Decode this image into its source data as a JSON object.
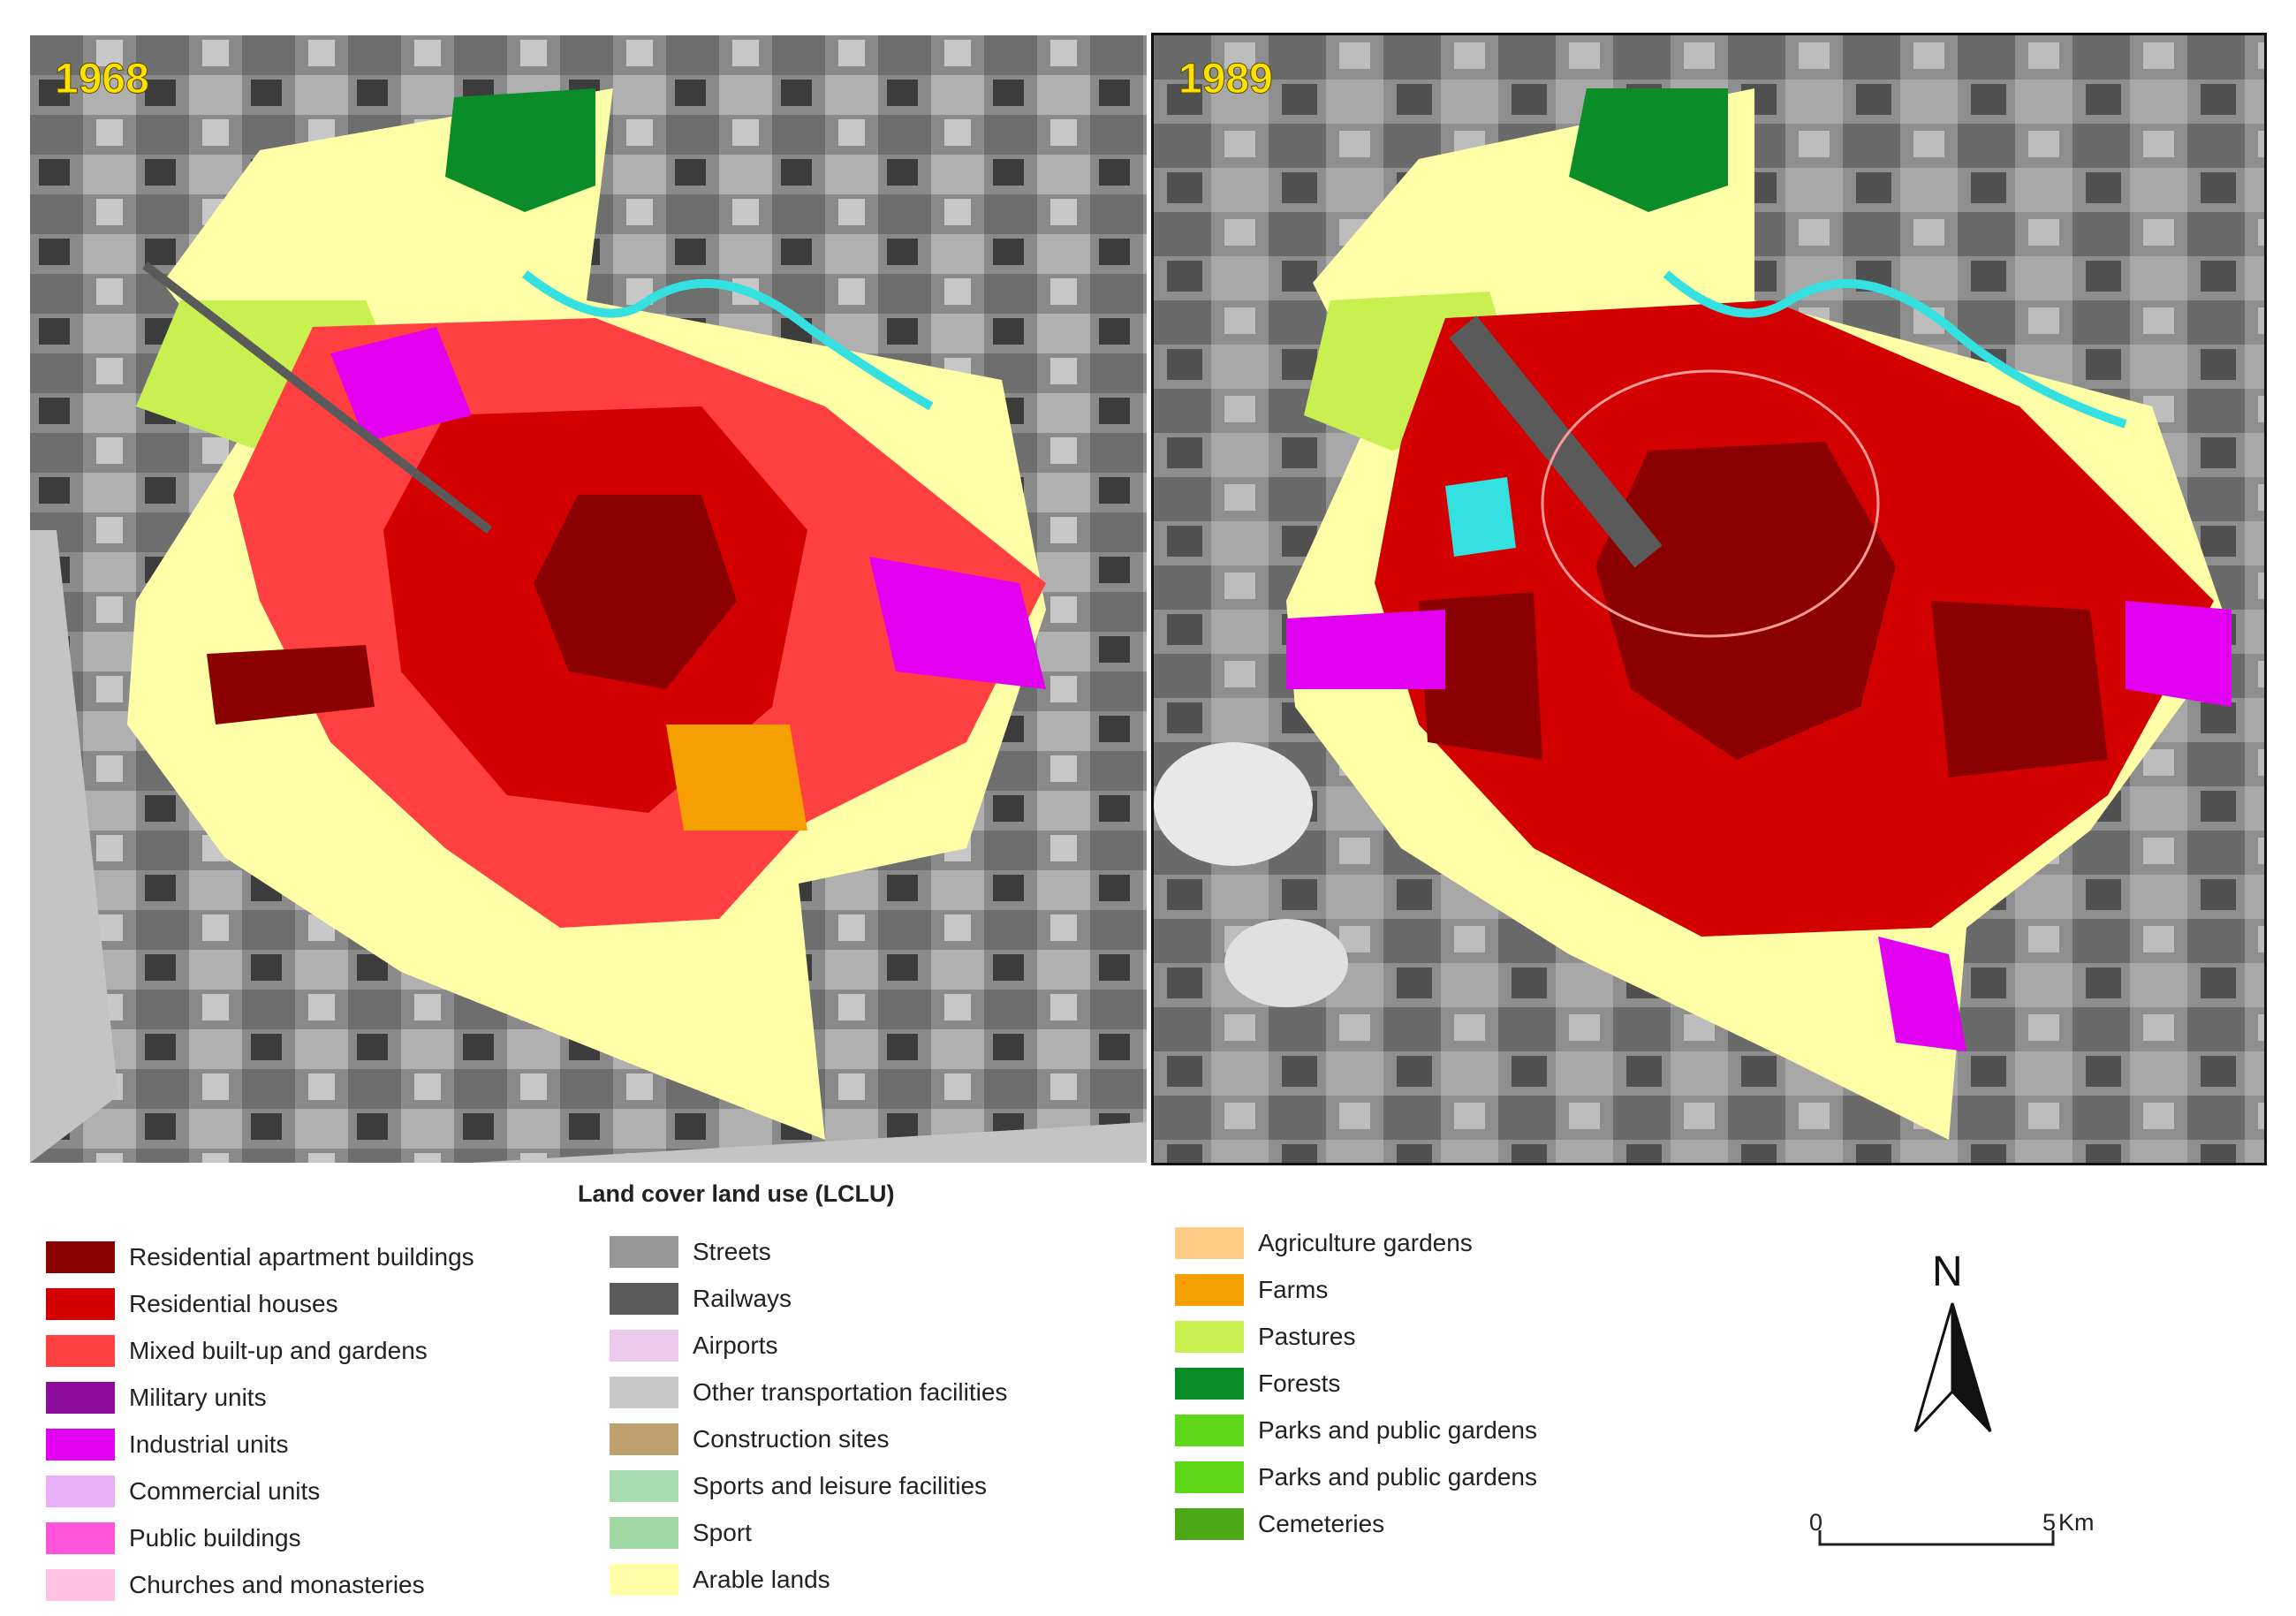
{
  "maps": {
    "left_year": "1968",
    "right_year": "1989"
  },
  "legend": {
    "title": "Land cover land use (LCLU)",
    "columns": [
      [
        {
          "label": "Residential apartment buildings",
          "color": "#8b0000"
        },
        {
          "label": "Residential houses",
          "color": "#d20000"
        },
        {
          "label": "Mixed built-up and gardens",
          "color": "#ff4040"
        },
        {
          "label": "Military units",
          "color": "#8c0c9c"
        },
        {
          "label": "Industrial units",
          "color": "#e100f0"
        },
        {
          "label": "Commercial units",
          "color": "#eab0f5"
        },
        {
          "label": "Public buildings",
          "color": "#ff55dd"
        },
        {
          "label": "Churches and monasteries",
          "color": "#ffc0e4"
        }
      ],
      [
        {
          "label": "Streets",
          "color": "#969696"
        },
        {
          "label": "Railways",
          "color": "#5a5a5a"
        },
        {
          "label": "Airports",
          "color": "#ecc8ea"
        },
        {
          "label": "Other transportation facilities",
          "color": "#c8c8c8"
        },
        {
          "label": "Construction sites",
          "color": "#bea070"
        },
        {
          "label": "Sports and leisure facilities",
          "color": "#a8dcb0"
        },
        {
          "label": "Sport",
          "color": "#a0d8a4"
        },
        {
          "label": "Arable lands",
          "color": "#ffffa8"
        }
      ],
      [
        {
          "label": "Agriculture gardens",
          "color": "#ffcc88"
        },
        {
          "label": "Farms",
          "color": "#f5a000"
        },
        {
          "label": "Pastures",
          "color": "#c8f050"
        },
        {
          "label": "Forests",
          "color": "#0a8c28"
        },
        {
          "label": "Parks and public gardens",
          "color": "#5ed818"
        },
        {
          "label": "Parks and public gardens",
          "color": "#5ed818"
        },
        {
          "label": "Cemeteries",
          "color": "#4ca814"
        }
      ]
    ]
  },
  "north_arrow": {
    "label": "N"
  },
  "scale_bar": {
    "start": "0",
    "end": "5",
    "unit": "Km"
  }
}
